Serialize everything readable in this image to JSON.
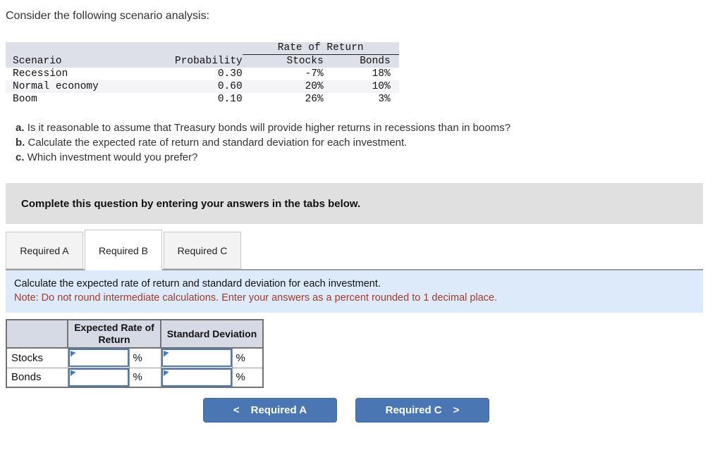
{
  "title": "Consider the following scenario analysis:",
  "scenario_table": {
    "rate_of_return_label": "Rate of Return",
    "columns": [
      "Scenario",
      "Probability",
      "Stocks",
      "Bonds"
    ],
    "rows": [
      {
        "scenario": "Recession",
        "probability": "0.30",
        "stocks": "-7%",
        "bonds": "18%"
      },
      {
        "scenario": "Normal economy",
        "probability": "0.60",
        "stocks": "20%",
        "bonds": "10%"
      },
      {
        "scenario": "Boom",
        "probability": "0.10",
        "stocks": "26%",
        "bonds": "3%"
      }
    ]
  },
  "questions": [
    {
      "label": "a.",
      "text": "Is it reasonable to assume that Treasury bonds will provide higher returns in recessions than in booms?"
    },
    {
      "label": "b.",
      "text": "Calculate the expected rate of return and standard deviation for each investment."
    },
    {
      "label": "c.",
      "text": "Which investment would you prefer?"
    }
  ],
  "banner": {
    "text": "Complete this question by entering your answers in the tabs below."
  },
  "tabs": [
    {
      "label": "Required A",
      "active": false
    },
    {
      "label": "Required B",
      "active": true
    },
    {
      "label": "Required C",
      "active": false
    }
  ],
  "instruction": {
    "text": "Calculate the expected rate of return and standard deviation for each investment.",
    "note": "Note: Do not round intermediate calculations. Enter your answers as a percent rounded to 1 decimal place."
  },
  "answer_table": {
    "col_headers": [
      "Expected Rate of Return",
      "Standard Deviation"
    ],
    "rows": [
      {
        "label": "Stocks",
        "err_value": "",
        "err_unit": "%",
        "sd_value": "",
        "sd_unit": "%"
      },
      {
        "label": "Bonds",
        "err_value": "",
        "err_unit": "%",
        "sd_value": "",
        "sd_unit": "%"
      }
    ]
  },
  "nav": {
    "prev": {
      "icon": "<",
      "label": "Required A"
    },
    "next": {
      "label": "Required C",
      "icon": ">"
    }
  },
  "colors": {
    "button_blue": "#4a77b4",
    "input_border_blue": "#4d7ab5",
    "note_red": "#a23b2e",
    "panel_blue": "#dceafa",
    "banner_gray": "#e0e0e0",
    "table_header_gray": "#dee0e9"
  }
}
